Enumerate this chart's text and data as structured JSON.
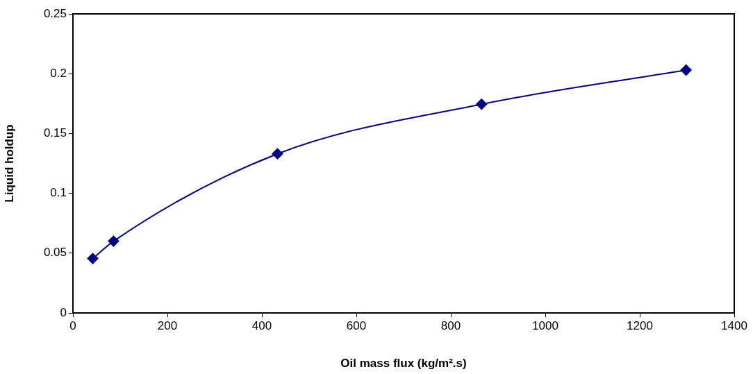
{
  "chart_data": {
    "type": "line",
    "xlabel": "Oil mass flux (kg/m².s)",
    "ylabel": "Liquid holdup",
    "x": [
      42,
      86,
      433,
      865,
      1298
    ],
    "series": [
      {
        "color": "#000080",
        "values": [
          0.0455,
          0.06,
          0.133,
          0.1745,
          0.203
        ]
      }
    ],
    "xlim": [
      0,
      1400
    ],
    "xticks": [
      0,
      200,
      400,
      600,
      800,
      1000,
      1200,
      1400
    ],
    "ylim": [
      0,
      0.25
    ],
    "yticks": [
      0,
      0.05,
      0.1,
      0.15,
      0.2,
      0.25
    ],
    "grid": false,
    "legend": false,
    "marker": "diamond",
    "line_style": "solid"
  }
}
